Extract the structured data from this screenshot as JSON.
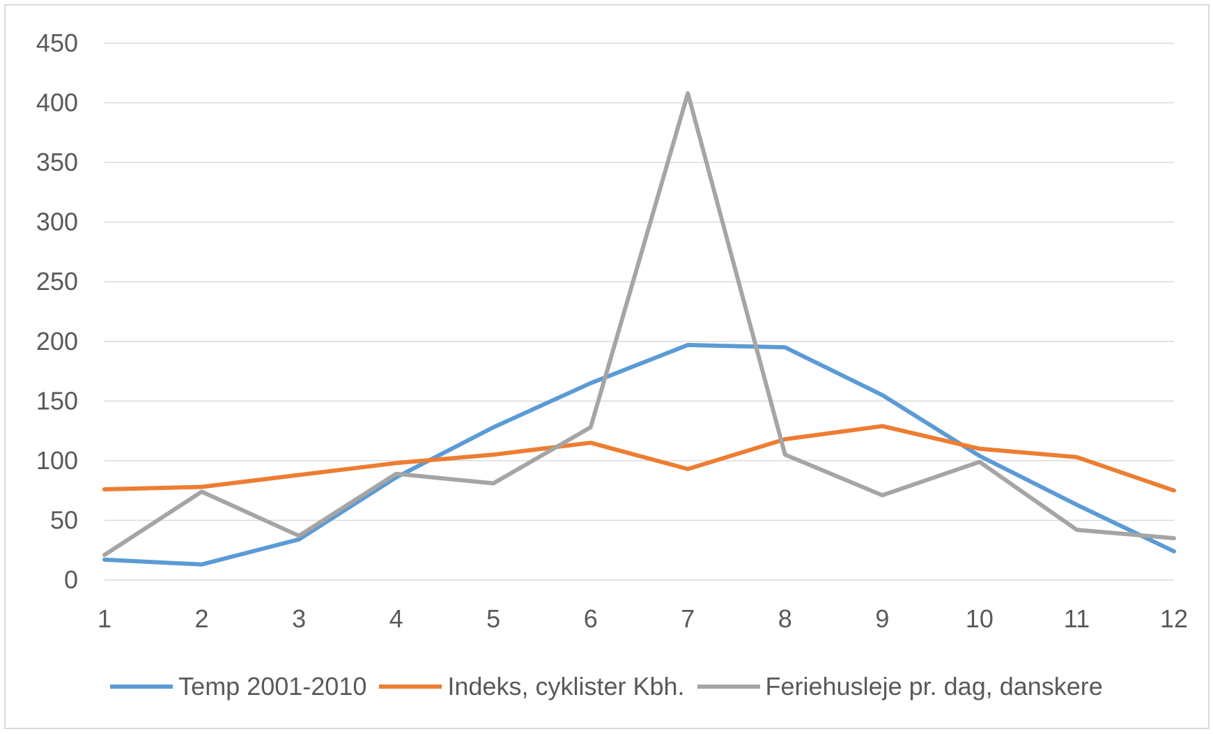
{
  "chart_data": {
    "type": "line",
    "title": "",
    "xlabel": "",
    "ylabel": "",
    "ylim": [
      0,
      450
    ],
    "yticks": [
      0,
      50,
      100,
      150,
      200,
      250,
      300,
      350,
      400,
      450
    ],
    "categories": [
      "1",
      "2",
      "3",
      "4",
      "5",
      "6",
      "7",
      "8",
      "9",
      "10",
      "11",
      "12"
    ],
    "grid": "horizontal",
    "legend_position": "bottom",
    "series": [
      {
        "name": "Temp 2001-2010",
        "color": "#5b9bd5",
        "values": [
          17,
          13,
          34,
          86,
          128,
          165,
          197,
          195,
          155,
          104,
          63,
          24
        ]
      },
      {
        "name": "Indeks, cyklister Kbh.",
        "color": "#ed7d31",
        "values": [
          76,
          78,
          88,
          98,
          105,
          115,
          93,
          118,
          129,
          110,
          103,
          75
        ]
      },
      {
        "name": "Feriehusleje pr. dag, danskere",
        "color": "#a5a5a5",
        "values": [
          21,
          74,
          37,
          89,
          81,
          128,
          408,
          105,
          71,
          99,
          42,
          35
        ]
      }
    ]
  }
}
